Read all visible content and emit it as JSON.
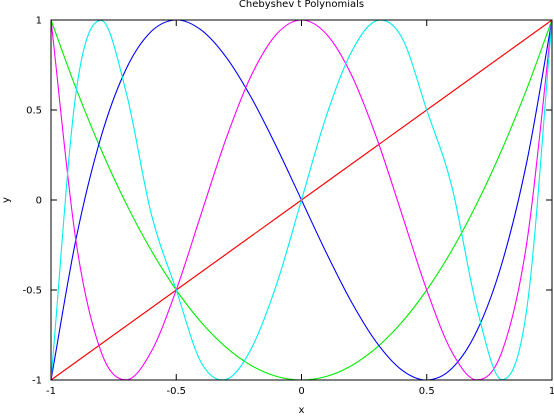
{
  "chart_data": {
    "type": "line",
    "title": "Chebyshev t Polynomials",
    "xlabel": "x",
    "ylabel": "y",
    "xlim": [
      -1,
      1
    ],
    "ylim": [
      -1,
      1
    ],
    "x_ticks": [
      -1,
      -0.5,
      0,
      0.5,
      1
    ],
    "y_ticks": [
      -1,
      -0.5,
      0,
      0.5,
      1
    ],
    "x_tick_labels": [
      "-1",
      "-0.5",
      "0",
      "0.5",
      "1"
    ],
    "y_tick_labels": [
      "-1",
      "-0.5",
      "0",
      "0.5",
      "1"
    ],
    "grid": false,
    "legend": "none",
    "x": [
      -1,
      -0.9,
      -0.8,
      -0.7,
      -0.6,
      -0.5,
      -0.4,
      -0.3,
      -0.2,
      -0.1,
      0,
      0.1,
      0.2,
      0.3,
      0.4,
      0.5,
      0.6,
      0.7,
      0.8,
      0.9,
      1
    ],
    "series": [
      {
        "degree": 1,
        "color": "#ff0000",
        "y": [
          -1,
          -0.9,
          -0.8,
          -0.7,
          -0.6,
          -0.5,
          -0.4,
          -0.3,
          -0.2,
          -0.1,
          0,
          0.1,
          0.2,
          0.3,
          0.4,
          0.5,
          0.6,
          0.7,
          0.8,
          0.9,
          1
        ]
      },
      {
        "degree": 2,
        "color": "#00ee00",
        "y": [
          1,
          0.62,
          0.28,
          -0.02,
          -0.28,
          -0.5,
          -0.68,
          -0.82,
          -0.92,
          -0.98,
          -1,
          -0.98,
          -0.92,
          -0.82,
          -0.68,
          -0.5,
          -0.28,
          -0.02,
          0.28,
          0.62,
          1
        ]
      },
      {
        "degree": 3,
        "color": "#0000ff",
        "y": [
          -1,
          -0.216,
          0.352,
          0.728,
          0.936,
          1,
          0.944,
          0.792,
          0.568,
          0.296,
          0,
          -0.296,
          -0.568,
          -0.792,
          -0.944,
          -1,
          -0.936,
          -0.728,
          -0.352,
          0.216,
          1
        ]
      },
      {
        "degree": 4,
        "color": "#ff00ff",
        "y": [
          1,
          -0.2312,
          -0.8432,
          -0.9992,
          -0.8432,
          -0.5,
          -0.0752,
          0.3448,
          0.6928,
          0.9208,
          1,
          0.9208,
          0.6928,
          0.3448,
          -0.0752,
          -0.5,
          -0.8432,
          -0.9992,
          -0.8432,
          -0.2312,
          1
        ]
      },
      {
        "degree": 5,
        "color": "#00eeee",
        "y": [
          -1,
          0.5981,
          0.9981,
          0.5984,
          -0.076,
          -0.5,
          -0.9043,
          -0.9962,
          -0.8243,
          -0.4707,
          0,
          0.4707,
          0.8243,
          0.9962,
          0.9043,
          0.5,
          0.076,
          -0.5984,
          -0.9981,
          -0.5981,
          1
        ]
      }
    ]
  }
}
